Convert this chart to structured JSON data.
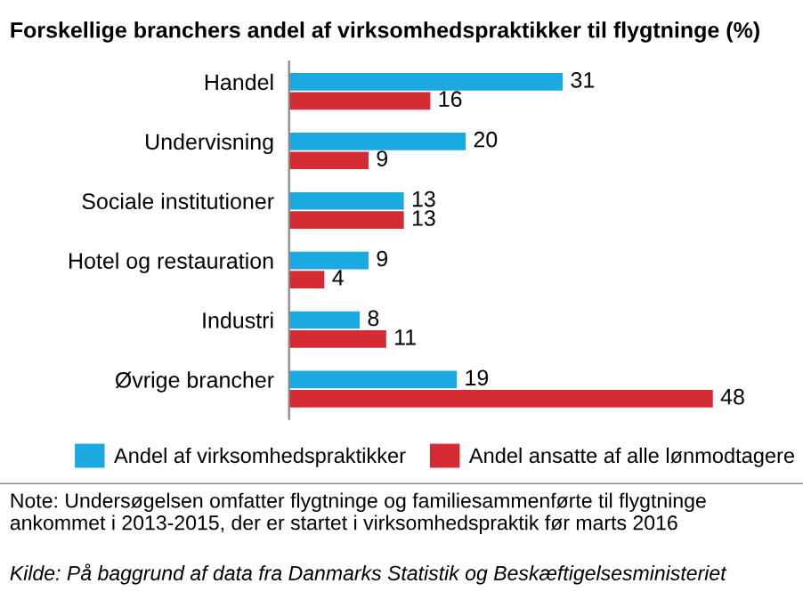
{
  "chart_data": {
    "type": "bar",
    "orientation": "horizontal",
    "title": "Forskellige branchers andel af virksomhedspraktikker til flygtninge (%)",
    "categories": [
      "Handel",
      "Undervisning",
      "Sociale institutioner",
      "Hotel og restauration",
      "Industri",
      "Øvrige brancher"
    ],
    "series": [
      {
        "name": "Andel af virksomhedspraktikker",
        "color": "#1ba9e1",
        "values": [
          31,
          20,
          13,
          9,
          8,
          19
        ]
      },
      {
        "name": "Andel ansatte af alle lønmodtagere",
        "color": "#d52b32",
        "values": [
          16,
          9,
          13,
          4,
          11,
          48
        ]
      }
    ],
    "data_labels": true,
    "legend": "bottom",
    "grid": false,
    "tick_labels": "y",
    "annotations": [
      "Note: Undersøgelsen omfatter flygtninge og familiesammenførte til flygtninge ankommet i 2013-2015, der er startet i virksomhedspraktik før marts 2016",
      "Kilde: På baggrund af data fra Danmarks Statistik og Beskæftigelsesministeriet"
    ]
  }
}
